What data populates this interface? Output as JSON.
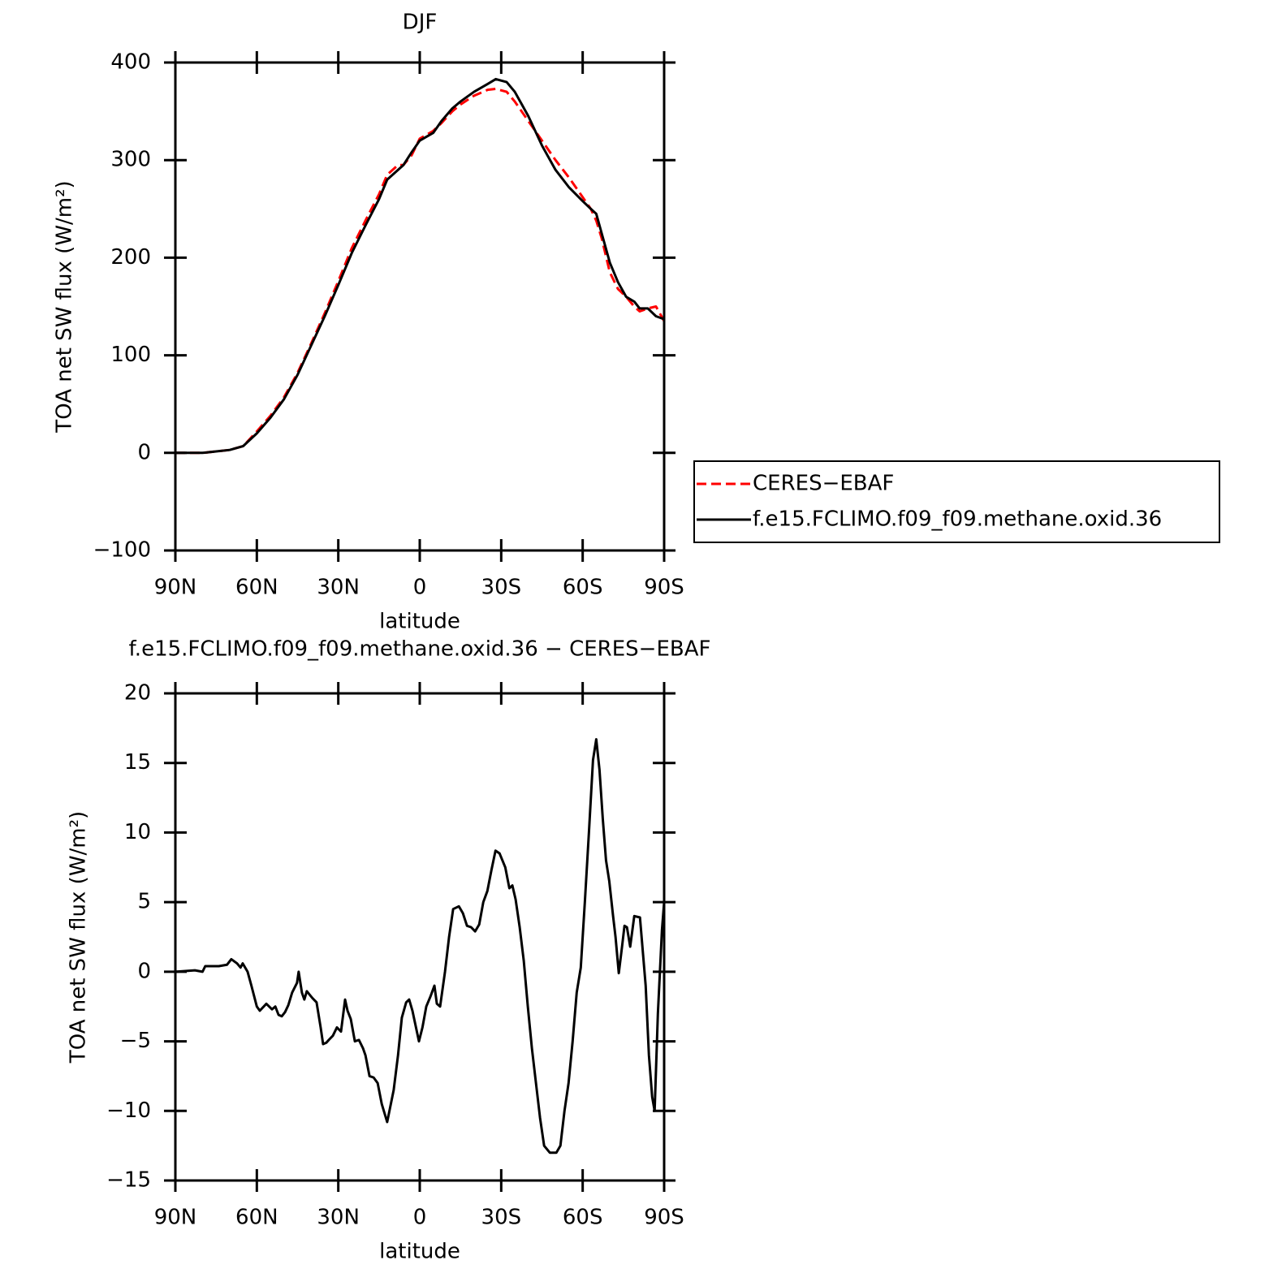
{
  "chart_data": [
    {
      "type": "line",
      "title": "DJF",
      "xlabel": "latitude",
      "ylabel": "TOA net SW flux (W/m²)",
      "x": [
        90,
        80,
        70,
        65,
        60,
        55,
        50,
        45,
        40,
        35,
        30,
        25,
        20,
        15,
        12,
        8,
        6,
        3,
        0,
        -5,
        -8,
        -12,
        -15,
        -20,
        -25,
        -28,
        -32,
        -35,
        -40,
        -45,
        -50,
        -55,
        -60,
        -63,
        -65,
        -67,
        -70,
        -73,
        -76,
        -79,
        -81,
        -84,
        -87,
        -90
      ],
      "series": [
        {
          "name": "CERES−EBAF",
          "color": "#ff0000",
          "line_style": "dashed",
          "values": [
            0,
            0,
            3,
            7,
            22,
            38,
            57,
            82,
            112,
            143,
            176,
            210,
            238,
            265,
            285,
            295,
            295,
            305,
            322,
            330,
            338,
            350,
            357,
            366,
            372,
            373,
            370,
            360,
            340,
            320,
            300,
            282,
            262,
            250,
            238,
            220,
            185,
            168,
            160,
            150,
            145,
            148,
            150,
            135
          ]
        },
        {
          "name": "f.e15.FCLIMO.f09_f09.methane.oxid.36",
          "color": "#000000",
          "line_style": "solid",
          "values": [
            0,
            0,
            3,
            7,
            20,
            36,
            55,
            80,
            110,
            140,
            172,
            205,
            233,
            260,
            280,
            290,
            295,
            308,
            320,
            328,
            340,
            353,
            360,
            370,
            378,
            383,
            380,
            370,
            345,
            315,
            290,
            272,
            258,
            250,
            245,
            225,
            195,
            175,
            160,
            155,
            148,
            148,
            140,
            137
          ]
        }
      ],
      "xlim": [
        90,
        -90
      ],
      "xticks": [
        {
          "value": 90,
          "label": "90N"
        },
        {
          "value": 60,
          "label": "60N"
        },
        {
          "value": 30,
          "label": "30N"
        },
        0,
        {
          "value": -30,
          "label": "30S"
        },
        {
          "value": -60,
          "label": "60S"
        },
        {
          "value": -90,
          "label": "90S"
        }
      ],
      "ylim": [
        -100,
        400
      ],
      "yticks": [
        {
          "value": -100,
          "label": "−100"
        },
        0,
        100,
        200,
        300,
        400
      ]
    },
    {
      "type": "line",
      "title": "f.e15.FCLIMO.f09_f09.methane.oxid.36 − CERES−EBAF",
      "xlabel": "latitude",
      "ylabel": "TOA net SW flux (W/m²)",
      "x": [
        90,
        82.8,
        80,
        79,
        74,
        71,
        69.4,
        67.3,
        66,
        65.2,
        63.4,
        62,
        60,
        58.9,
        56.5,
        54.4,
        53.2,
        52,
        50.8,
        49.6,
        48.4,
        47,
        45.2,
        44.6,
        43.4,
        42.5,
        41.6,
        39.5,
        38,
        36.5,
        35.6,
        34.4,
        33.5,
        32,
        30.5,
        29,
        27.5,
        26.6,
        25.4,
        23.9,
        22.4,
        20.9,
        20,
        18.5,
        17,
        15.5,
        14,
        12,
        9.6,
        8,
        6.6,
        5,
        3.9,
        2.7,
        0.3,
        -1,
        -2.4,
        -3.9,
        -5.4,
        -6.3,
        -7.5,
        -9.3,
        -10.8,
        -12.3,
        -14.4,
        -15.9,
        -17.4,
        -18.9,
        -20.4,
        -21.9,
        -23.4,
        -24.9,
        -26.4,
        -27.9,
        -29.4,
        -31.5,
        -33,
        -34.1,
        -35.3,
        -36.8,
        -38.3,
        -39.8,
        -41.3,
        -42.8,
        -44.3,
        -45.8,
        -47.9,
        -50.3,
        -51.8,
        -53.3,
        -54.8,
        -56.3,
        -57.8,
        -59.3,
        -60.8,
        -62.3,
        -63.8,
        -65,
        -66.2,
        -67.4,
        -68.6,
        -69.8,
        -71.2,
        -72.1,
        -73.3,
        -74.5,
        -75.4,
        -76.3,
        -77.5,
        -79,
        -81.1,
        -83.2,
        -84.4,
        -85.6,
        -86.5,
        -87.7,
        -89.2,
        -90
      ],
      "series": [
        {
          "color": "#000000",
          "line_style": "solid",
          "values": [
            0,
            0.1,
            0,
            0.4,
            0.4,
            0.5,
            0.9,
            0.6,
            0.3,
            0.6,
            0,
            -1,
            -2.5,
            -2.8,
            -2.3,
            -2.7,
            -2.5,
            -3.1,
            -3.2,
            -2.9,
            -2.4,
            -1.5,
            -0.8,
            0,
            -1.5,
            -2,
            -1.4,
            -1.9,
            -2.2,
            -4,
            -5.2,
            -5.1,
            -4.9,
            -4.6,
            -4,
            -4.3,
            -2,
            -2.8,
            -3.4,
            -5,
            -4.9,
            -5.5,
            -6,
            -7.5,
            -7.6,
            -8,
            -9.5,
            -10.8,
            -8.5,
            -6,
            -3.3,
            -2.2,
            -2,
            -2.8,
            -5,
            -4,
            -2.5,
            -1.8,
            -1,
            -2.3,
            -2.5,
            0,
            2.5,
            4.5,
            4.7,
            4.2,
            3.3,
            3.2,
            2.9,
            3.4,
            5,
            5.8,
            7.3,
            8.7,
            8.5,
            7.5,
            6,
            6.2,
            5.2,
            3.2,
            0.8,
            -2.5,
            -5.5,
            -8,
            -10.5,
            -12.5,
            -13,
            -13,
            -12.5,
            -10,
            -8,
            -5,
            -1.5,
            0.3,
            5,
            10,
            15.2,
            16.7,
            14.5,
            11,
            8,
            6.5,
            4,
            2.5,
            -0.1,
            1.8,
            3.3,
            3.2,
            1.8,
            4,
            3.9,
            -1,
            -6,
            -9,
            -10,
            -3,
            3,
            5
          ]
        }
      ],
      "xlim": [
        90,
        -90
      ],
      "xticks": [
        {
          "value": 90,
          "label": "90N"
        },
        {
          "value": 60,
          "label": "60N"
        },
        {
          "value": 30,
          "label": "30N"
        },
        0,
        {
          "value": -30,
          "label": "30S"
        },
        {
          "value": -60,
          "label": "60S"
        },
        {
          "value": -90,
          "label": "90S"
        }
      ],
      "ylim": [
        -15,
        20
      ],
      "yticks": [
        {
          "value": -15,
          "label": "−15"
        },
        {
          "value": -10,
          "label": "−10"
        },
        {
          "value": -5,
          "label": "−5"
        },
        0,
        5,
        10,
        15,
        20
      ]
    }
  ]
}
